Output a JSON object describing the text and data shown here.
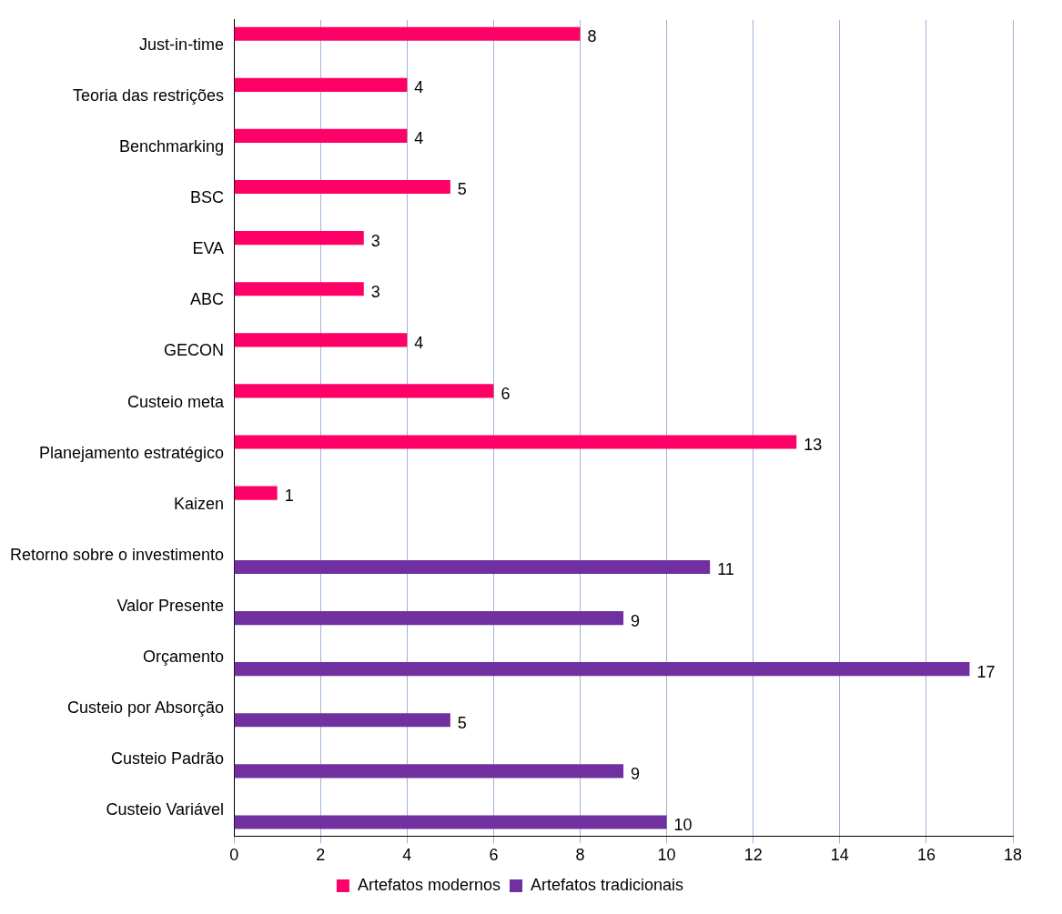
{
  "chart_data": {
    "type": "bar",
    "orientation": "horizontal",
    "categories": [
      "Just-in-time",
      "Teoria das restrições",
      "Benchmarking",
      "BSC",
      "EVA",
      "ABC",
      "GECON",
      "Custeio meta",
      "Planejamento estratégico",
      "Kaizen",
      "Retorno sobre o investimento",
      "Valor Presente",
      "Orçamento",
      "Custeio por Absorção",
      "Custeio Padrão",
      "Custeio Variável"
    ],
    "series": [
      {
        "name": "Artefatos modernos",
        "color": "#ff0066",
        "values": [
          8,
          4,
          4,
          5,
          3,
          3,
          4,
          6,
          13,
          1,
          null,
          null,
          null,
          null,
          null,
          null
        ]
      },
      {
        "name": "Artefatos tradicionais",
        "color": "#7030a0",
        "values": [
          null,
          null,
          null,
          null,
          null,
          null,
          null,
          null,
          null,
          null,
          11,
          9,
          17,
          5,
          9,
          10
        ]
      }
    ],
    "xlim": [
      0,
      18
    ],
    "xticks": [
      0,
      2,
      4,
      6,
      8,
      10,
      12,
      14,
      16,
      18
    ],
    "grid": "x",
    "legend": "bottom",
    "data_labels": true
  }
}
